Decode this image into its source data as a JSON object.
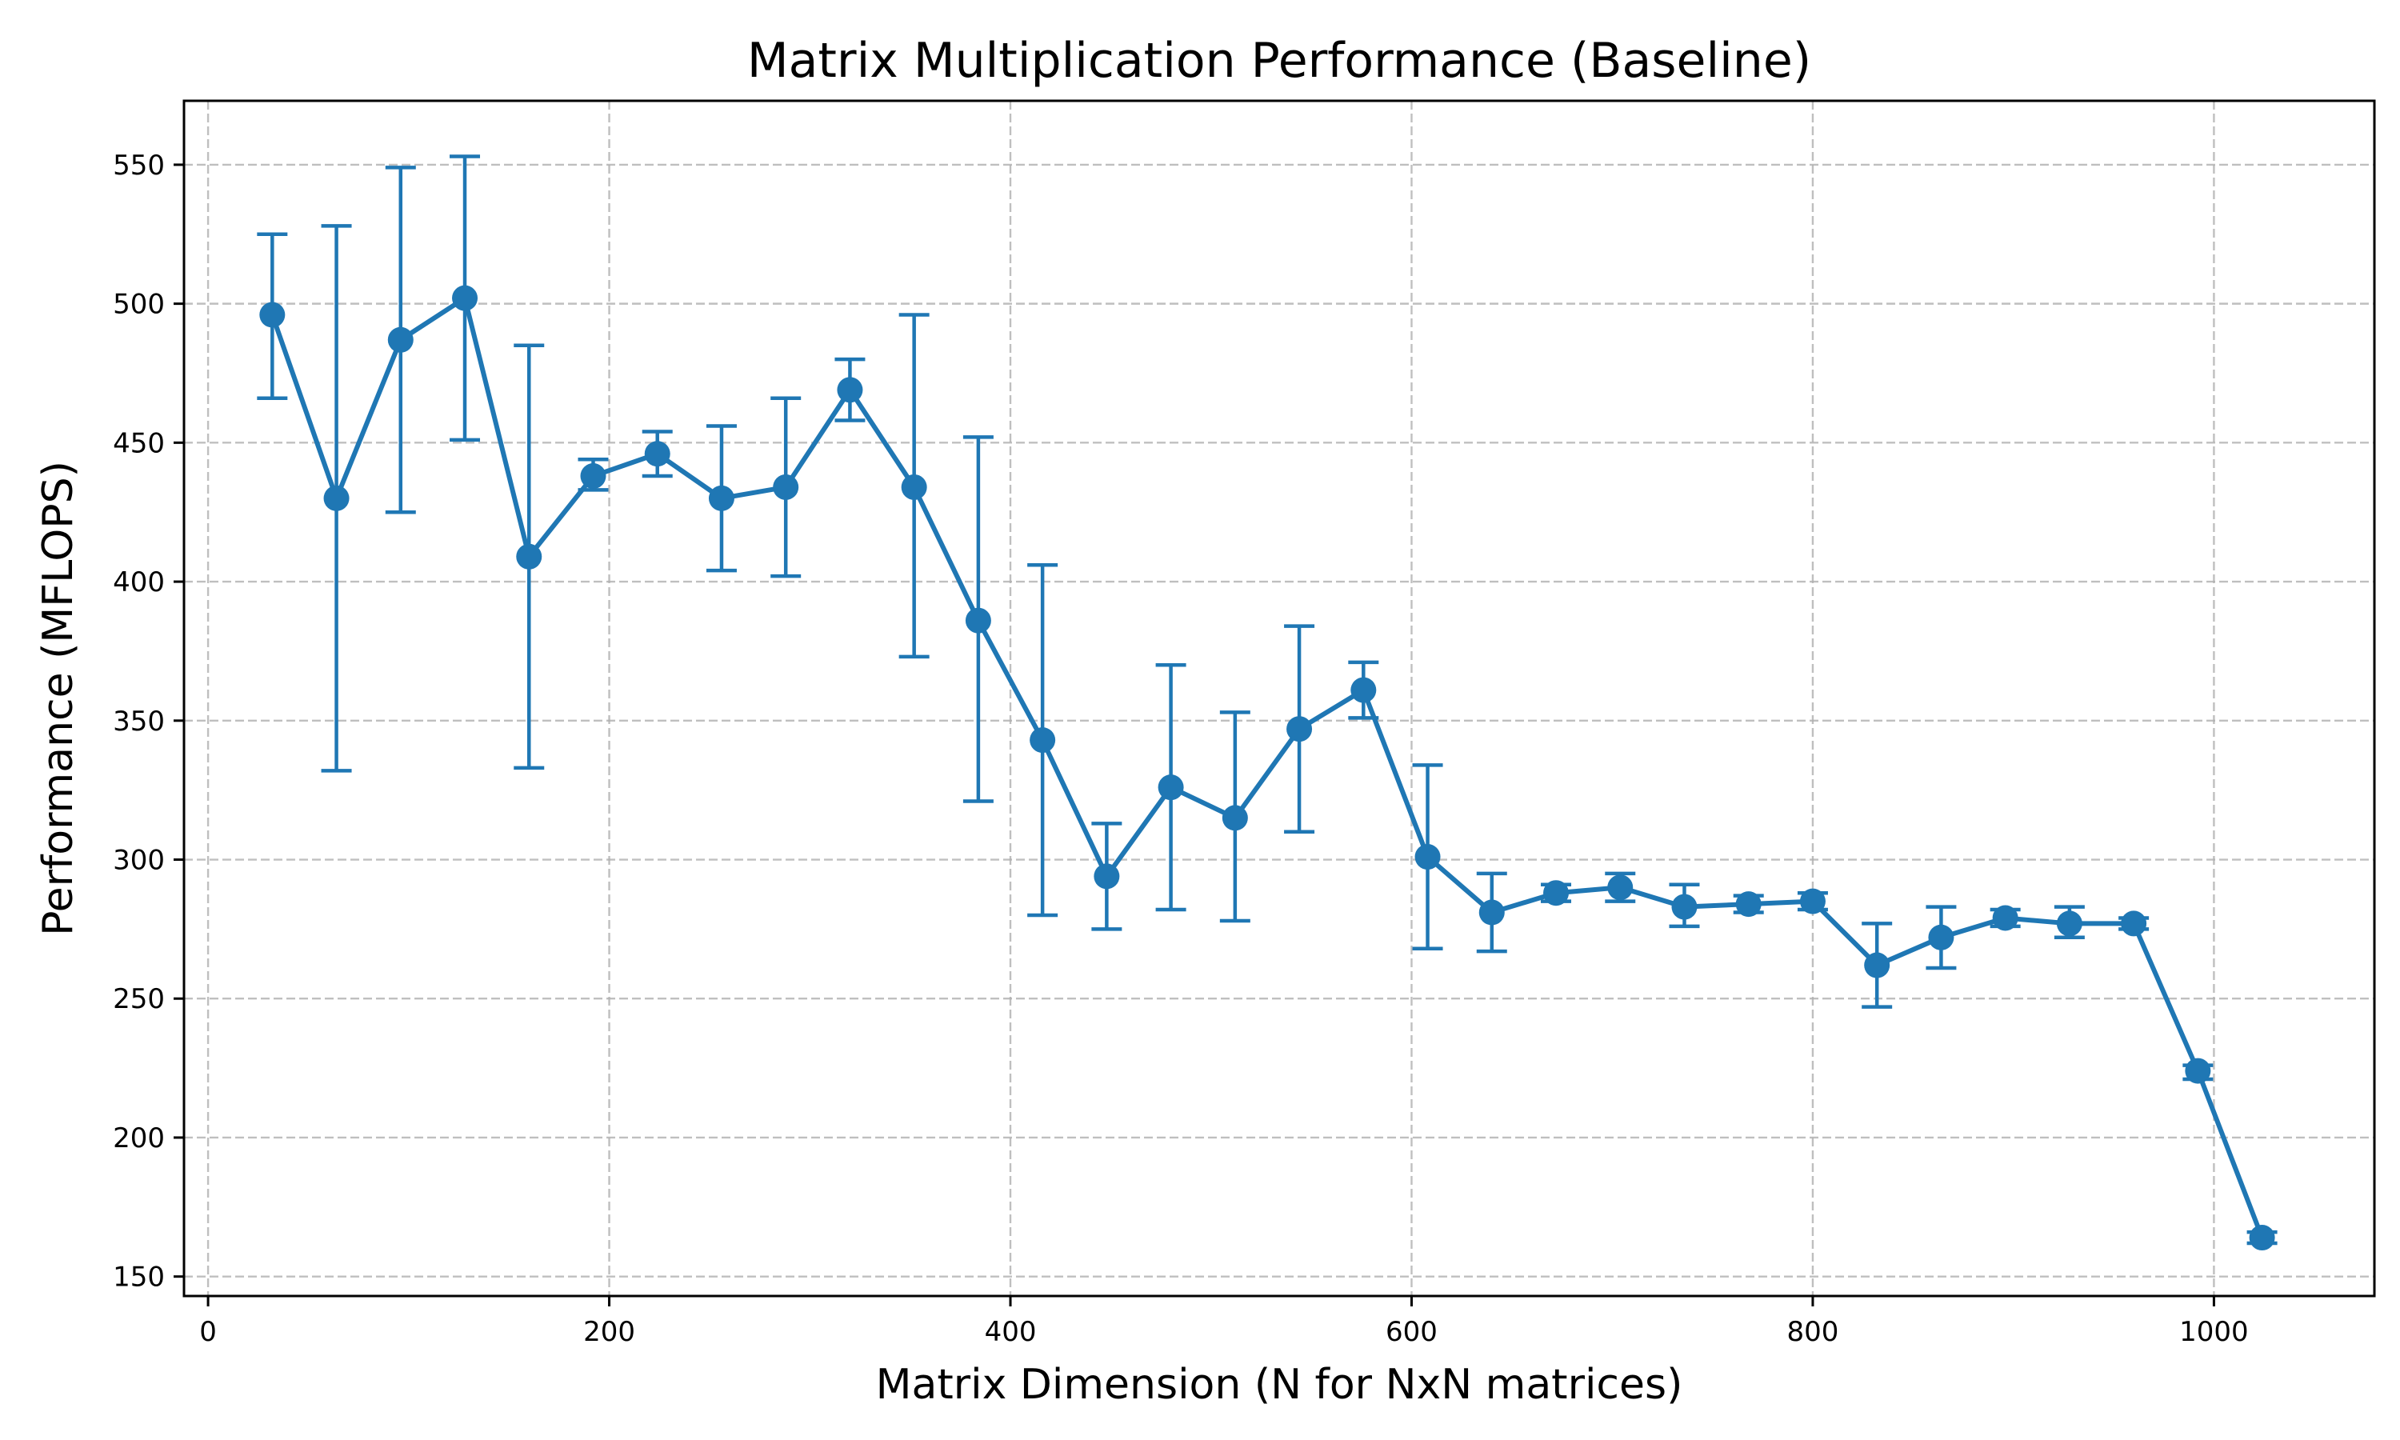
{
  "chart_data": {
    "type": "line",
    "title": "Matrix Multiplication Performance (Baseline)",
    "xlabel": "Matrix Dimension (N for NxN matrices)",
    "ylabel": "Performance (MFLOPS)",
    "xlim": [
      -12,
      1080
    ],
    "ylim": [
      143,
      573
    ],
    "xticks": [
      0,
      200,
      400,
      600,
      800,
      1000
    ],
    "yticks": [
      150,
      200,
      250,
      300,
      350,
      400,
      450,
      500,
      550
    ],
    "grid": true,
    "legend": "none",
    "series_color": "#1f77b4",
    "series": [
      {
        "x": [
          32,
          64,
          96,
          128,
          160,
          192,
          224,
          256,
          288,
          320,
          352,
          384,
          416,
          448,
          480,
          512,
          544,
          576,
          608,
          640,
          672,
          704,
          736,
          768,
          800,
          832,
          864,
          896,
          928,
          960,
          992,
          1024
        ],
        "y": [
          496,
          430,
          487,
          502,
          409,
          438,
          446,
          430,
          434,
          469,
          434,
          386,
          343,
          294,
          326,
          315,
          347,
          361,
          301,
          281,
          288,
          290,
          283,
          284,
          285,
          262,
          272,
          279,
          277,
          277,
          224,
          164
        ],
        "yerr_low": [
          466,
          332,
          425,
          451,
          333,
          433,
          438,
          404,
          402,
          458,
          373,
          321,
          280,
          275,
          282,
          278,
          310,
          351,
          268,
          267,
          285,
          285,
          276,
          281,
          282,
          247,
          261,
          276,
          272,
          275,
          221,
          162
        ],
        "yerr_high": [
          525,
          528,
          549,
          553,
          485,
          444,
          454,
          456,
          466,
          480,
          496,
          452,
          406,
          313,
          370,
          353,
          384,
          371,
          334,
          295,
          291,
          295,
          291,
          287,
          288,
          277,
          283,
          282,
          283,
          279,
          226,
          166
        ]
      }
    ]
  }
}
